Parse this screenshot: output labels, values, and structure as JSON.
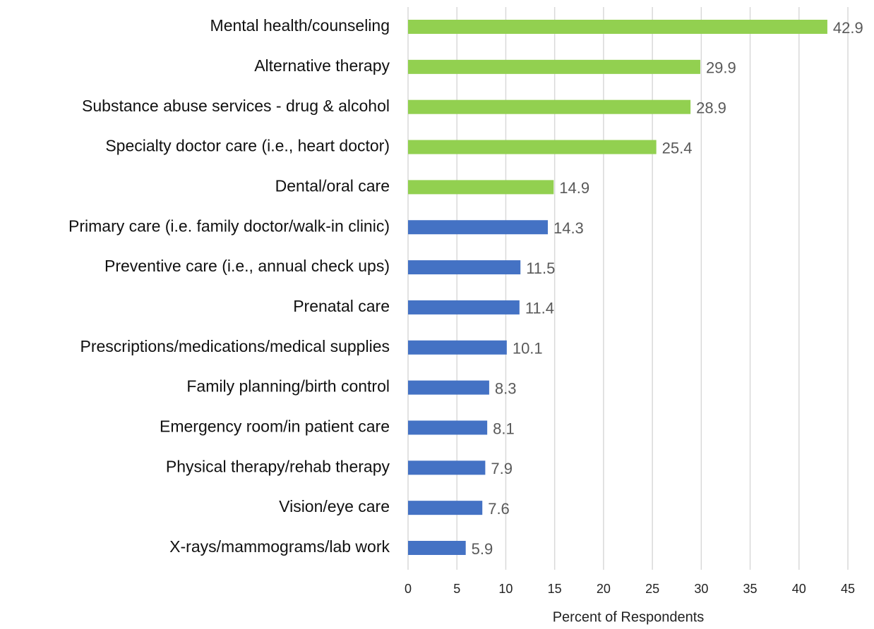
{
  "chart_data": {
    "type": "barh",
    "categories": [
      "Mental health/counseling",
      "Alternative therapy",
      "Substance abuse services - drug & alcohol",
      "Specialty doctor care (i.e., heart doctor)",
      "Dental/oral care",
      "Primary care (i.e. family doctor/walk-in clinic)",
      "Preventive care (i.e., annual check ups)",
      "Prenatal care",
      "Prescriptions/medications/medical supplies",
      "Family planning/birth control",
      "Emergency room/in patient care",
      "Physical therapy/rehab therapy",
      "Vision/eye care",
      "X-rays/mammograms/lab work"
    ],
    "values": [
      42.9,
      29.9,
      28.9,
      25.4,
      14.9,
      14.3,
      11.5,
      11.4,
      10.1,
      8.3,
      8.1,
      7.9,
      7.6,
      5.9
    ],
    "colors": [
      "#92d050",
      "#92d050",
      "#92d050",
      "#92d050",
      "#92d050",
      "#4472c4",
      "#4472c4",
      "#4472c4",
      "#4472c4",
      "#4472c4",
      "#4472c4",
      "#4472c4",
      "#4472c4",
      "#4472c4"
    ],
    "xlabel": "Percent of Respondents",
    "xlim": [
      0,
      45
    ],
    "xticks": [
      0,
      5,
      10,
      15,
      20,
      25,
      30,
      35,
      40,
      45
    ],
    "grid": true
  }
}
